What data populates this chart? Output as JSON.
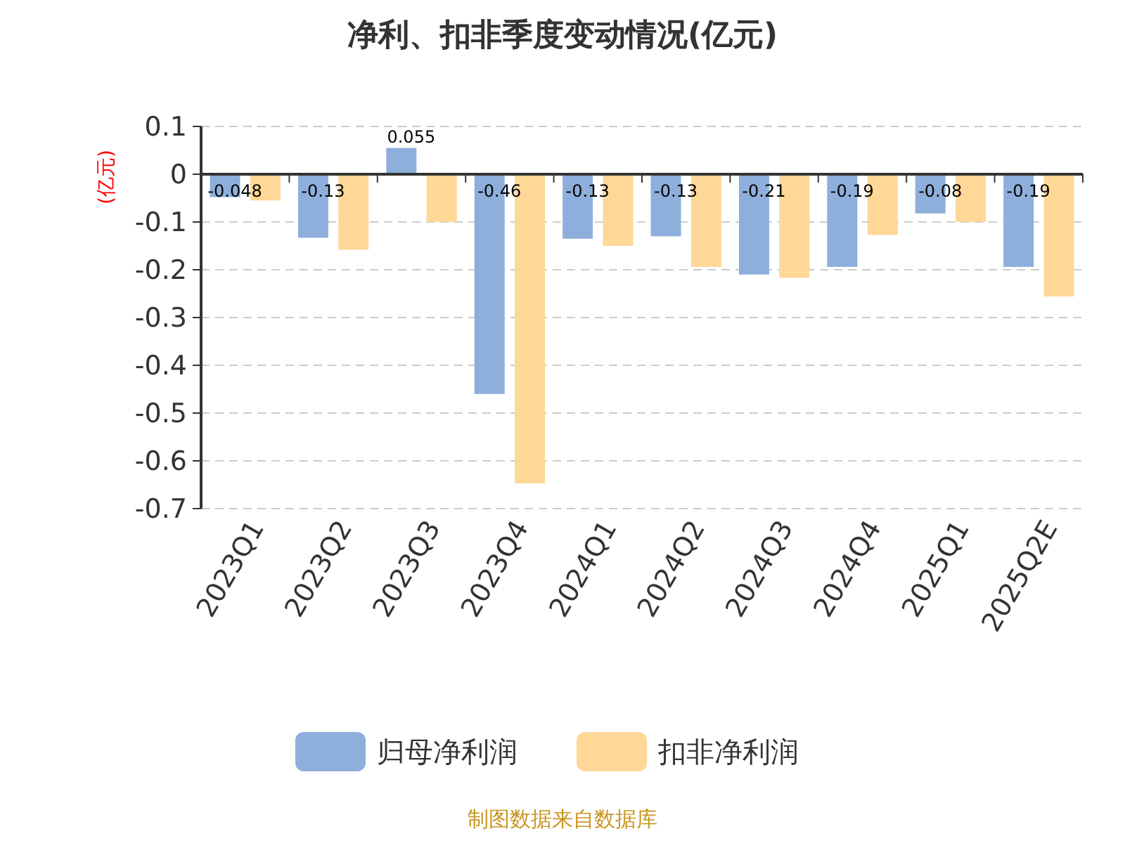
{
  "chart_data": {
    "type": "bar",
    "title": "净利、扣非季度变动情况(亿元)",
    "ylabel": "(亿元)",
    "categories": [
      "2023Q1",
      "2023Q2",
      "2023Q3",
      "2023Q4",
      "2024Q1",
      "2024Q2",
      "2024Q3",
      "2024Q4",
      "2025Q1",
      "2025Q2E"
    ],
    "series": [
      {
        "name": "归母净利润",
        "color": "#8eaedb",
        "values": [
          -0.048,
          -0.133,
          0.055,
          -0.46,
          -0.135,
          -0.13,
          -0.21,
          -0.194,
          -0.082,
          -0.194
        ],
        "value_labels": [
          "-0.048",
          "-0.13",
          "0.055",
          "-0.46",
          "-0.13",
          "-0.13",
          "-0.21",
          "-0.19",
          "-0.08",
          "-0.19"
        ]
      },
      {
        "name": "扣非净利润",
        "color": "#ffd797",
        "values": [
          -0.055,
          -0.158,
          -0.1,
          -0.647,
          -0.15,
          -0.194,
          -0.217,
          -0.127,
          -0.1,
          -0.256
        ]
      }
    ],
    "ylim": [
      -0.7,
      0.1
    ],
    "yticks": [
      0.1,
      0,
      -0.1,
      -0.2,
      -0.3,
      -0.4,
      -0.5,
      -0.6,
      -0.7
    ],
    "grid": "y",
    "legend": "bottom",
    "annotations": [
      "制图数据来自数据库"
    ]
  }
}
